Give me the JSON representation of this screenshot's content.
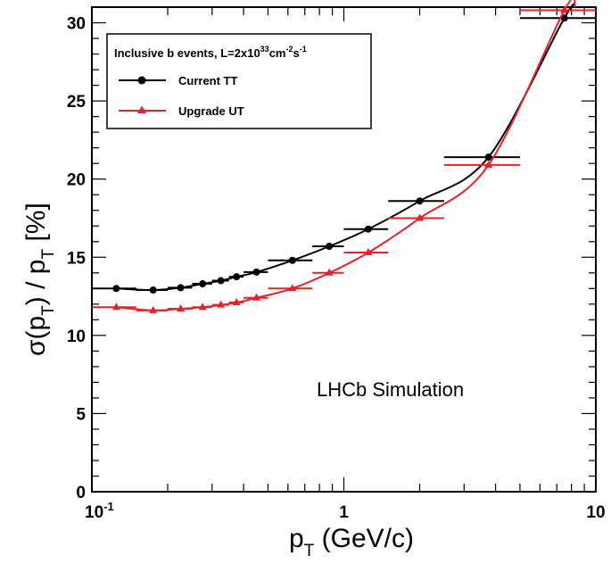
{
  "chart_data": {
    "type": "line",
    "x_scale": "log",
    "xlim": [
      0.1,
      10
    ],
    "ylim": [
      0,
      31
    ],
    "grid": false,
    "x_ticks": [
      {
        "value": 0.1,
        "base": "10",
        "exp": "-1"
      },
      {
        "value": 1,
        "base": "1",
        "exp": ""
      },
      {
        "value": 10,
        "base": "10",
        "exp": ""
      }
    ],
    "y_ticks": [
      0,
      5,
      10,
      15,
      20,
      25,
      30
    ],
    "xlabel": {
      "main": "p",
      "sub": "T",
      "rest": " (GeV/c)"
    },
    "ylabel": {
      "p1": "σ(p",
      "s1": "T",
      "p2": ") / p",
      "s2": "T",
      "p3": "  [%]"
    },
    "legend": {
      "placement": "top-left",
      "title": {
        "pre": "Inclusive b events, L=2x10",
        "sup1": "33",
        "mid": "cm",
        "sup2": "-2",
        "end": "s",
        "sup3": "-1"
      }
    },
    "annotation": "LHCb Simulation",
    "series": [
      {
        "name": "Current TT",
        "color": "#000000",
        "marker": "circle",
        "x": [
          0.125,
          0.175,
          0.225,
          0.275,
          0.325,
          0.375,
          0.45,
          0.625,
          0.875,
          1.25,
          2.0,
          3.75,
          7.5
        ],
        "xerr": [
          [
            0.1,
            0.15
          ],
          [
            0.15,
            0.2
          ],
          [
            0.2,
            0.25
          ],
          [
            0.25,
            0.3
          ],
          [
            0.3,
            0.35
          ],
          [
            0.35,
            0.4
          ],
          [
            0.4,
            0.5
          ],
          [
            0.5,
            0.75
          ],
          [
            0.75,
            1.0
          ],
          [
            1.0,
            1.5
          ],
          [
            1.5,
            2.5
          ],
          [
            2.5,
            5.0
          ],
          [
            5.0,
            10.0
          ]
        ],
        "y": [
          13.0,
          12.9,
          13.05,
          13.3,
          13.5,
          13.75,
          14.05,
          14.8,
          15.7,
          16.8,
          18.6,
          21.4,
          30.3
        ]
      },
      {
        "name": "Upgrade UT",
        "color": "#e8202a",
        "marker": "triangle",
        "x": [
          0.125,
          0.175,
          0.225,
          0.275,
          0.325,
          0.375,
          0.45,
          0.625,
          0.875,
          1.25,
          2.0,
          3.75,
          7.5
        ],
        "xerr": [
          [
            0.1,
            0.15
          ],
          [
            0.15,
            0.2
          ],
          [
            0.2,
            0.25
          ],
          [
            0.25,
            0.3
          ],
          [
            0.3,
            0.35
          ],
          [
            0.35,
            0.4
          ],
          [
            0.4,
            0.5
          ],
          [
            0.5,
            0.75
          ],
          [
            0.75,
            1.0
          ],
          [
            1.0,
            1.5
          ],
          [
            1.5,
            2.5
          ],
          [
            2.5,
            5.0
          ],
          [
            5.0,
            10.0
          ]
        ],
        "y": [
          11.8,
          11.6,
          11.7,
          11.8,
          11.95,
          12.1,
          12.4,
          13.0,
          14.0,
          15.3,
          17.5,
          20.9,
          30.8
        ]
      }
    ]
  }
}
